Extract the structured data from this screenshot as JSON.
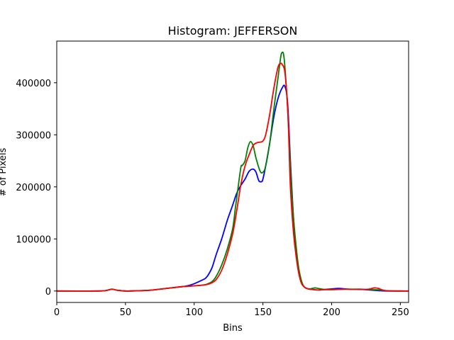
{
  "chart_data": {
    "type": "line",
    "title": "Histogram: JEFFERSON",
    "xlabel": "Bins",
    "ylabel": "# of Pixels",
    "xlim": [
      0,
      256
    ],
    "ylim": [
      -22000,
      480000
    ],
    "xticks": [
      0,
      50,
      100,
      150,
      200,
      250
    ],
    "yticks": [
      0,
      100000,
      200000,
      300000,
      400000
    ],
    "grid": false,
    "series": [
      {
        "color": "#0000ff",
        "x": [
          0,
          30,
          36,
          40,
          44,
          50,
          60,
          70,
          80,
          90,
          95,
          100,
          105,
          108,
          110,
          113,
          116,
          120,
          124,
          128,
          131,
          134,
          137,
          140,
          143,
          145,
          147,
          149,
          150,
          152,
          155,
          158,
          161,
          164,
          166,
          168,
          170,
          172,
          174,
          176,
          178,
          180,
          183,
          186,
          190,
          195,
          200,
          205,
          210,
          215,
          220,
          225,
          230,
          235,
          240,
          250,
          256
        ],
        "y": [
          0,
          0,
          1000,
          3500,
          1500,
          0,
          500,
          2000,
          5000,
          8000,
          10000,
          14000,
          20000,
          24000,
          30000,
          45000,
          70000,
          100000,
          135000,
          165000,
          188000,
          203000,
          215000,
          230000,
          234000,
          228000,
          212000,
          210000,
          215000,
          240000,
          285000,
          335000,
          370000,
          390000,
          393000,
          360000,
          250000,
          150000,
          80000,
          40000,
          18000,
          8000,
          4000,
          3000,
          2000,
          3000,
          4000,
          5000,
          4000,
          3000,
          3000,
          2500,
          1500,
          500,
          0,
          0,
          0
        ]
      },
      {
        "color": "#008000",
        "x": [
          0,
          30,
          36,
          40,
          44,
          50,
          60,
          70,
          80,
          90,
          95,
          100,
          105,
          108,
          110,
          113,
          116,
          120,
          124,
          128,
          130,
          132,
          134,
          135,
          137,
          139,
          141,
          143,
          145,
          148,
          150,
          152,
          155,
          158,
          161,
          163,
          164,
          165,
          166,
          168,
          170,
          172,
          174,
          176,
          178,
          180,
          183,
          186,
          188,
          190,
          195,
          200,
          205,
          210,
          215,
          220,
          225,
          230,
          235,
          240,
          250,
          256
        ],
        "y": [
          0,
          0,
          1000,
          3500,
          1500,
          0,
          500,
          2000,
          5000,
          8000,
          9000,
          10000,
          11000,
          12000,
          14000,
          18000,
          28000,
          50000,
          80000,
          120000,
          160000,
          200000,
          238000,
          241000,
          250000,
          275000,
          287000,
          278000,
          255000,
          230000,
          228000,
          240000,
          285000,
          350000,
          410000,
          450000,
          458000,
          455000,
          430000,
          350000,
          240000,
          150000,
          90000,
          45000,
          20000,
          8000,
          4000,
          5000,
          6000,
          5000,
          3000,
          2500,
          3000,
          3500,
          3000,
          3500,
          3000,
          2500,
          2000,
          500,
          0,
          0
        ]
      },
      {
        "color": "#ff0000",
        "x": [
          0,
          30,
          36,
          40,
          44,
          50,
          60,
          70,
          80,
          90,
          95,
          100,
          105,
          108,
          110,
          113,
          116,
          120,
          124,
          128,
          131,
          134,
          137,
          140,
          143,
          146,
          148,
          150,
          152,
          155,
          158,
          161,
          163,
          164,
          166,
          168,
          169,
          170,
          172,
          174,
          176,
          178,
          180,
          183,
          186,
          190,
          195,
          200,
          205,
          210,
          215,
          220,
          225,
          228,
          231,
          234,
          237,
          240,
          250,
          256
        ],
        "y": [
          0,
          0,
          1000,
          3500,
          1500,
          0,
          500,
          2000,
          5000,
          8000,
          9000,
          10000,
          11000,
          12000,
          13000,
          16000,
          22000,
          40000,
          70000,
          110000,
          155000,
          205000,
          240000,
          262000,
          280000,
          285000,
          286000,
          288000,
          300000,
          340000,
          390000,
          430000,
          437000,
          435000,
          420000,
          350000,
          280000,
          200000,
          120000,
          70000,
          35000,
          15000,
          8000,
          4000,
          3000,
          2000,
          2500,
          3000,
          3000,
          3500,
          3500,
          3500,
          3000,
          4000,
          6000,
          5000,
          2000,
          500,
          0,
          0
        ]
      }
    ]
  }
}
